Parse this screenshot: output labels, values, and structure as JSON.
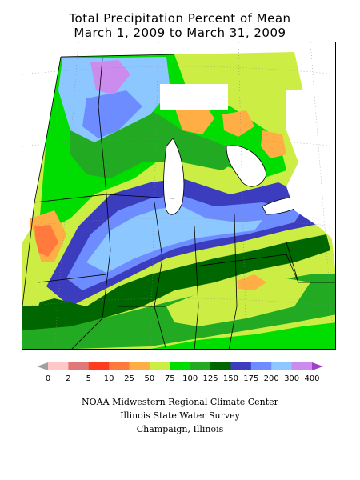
{
  "title": {
    "line1": "Total Precipitation Percent of Mean",
    "line2": "March 1, 2009 to March 31, 2009"
  },
  "legend": {
    "labels": [
      "0",
      "2",
      "5",
      "10",
      "25",
      "50",
      "75",
      "100",
      "125",
      "150",
      "175",
      "200",
      "300",
      "400"
    ],
    "colors": [
      "#a0a0a0",
      "#ffc8c8",
      "#e07878",
      "#ff3c1e",
      "#ff7a3c",
      "#ffae46",
      "#ccee44",
      "#00dd00",
      "#22aa22",
      "#006600",
      "#3c3cbe",
      "#6c8cff",
      "#8cc8ff",
      "#cc8cee",
      "#a040c8"
    ]
  },
  "credits": {
    "line1": "NOAA Midwestern Regional Climate Center",
    "line2": "Illinois State Water Survey",
    "line3": "Champaign, Illinois"
  }
}
